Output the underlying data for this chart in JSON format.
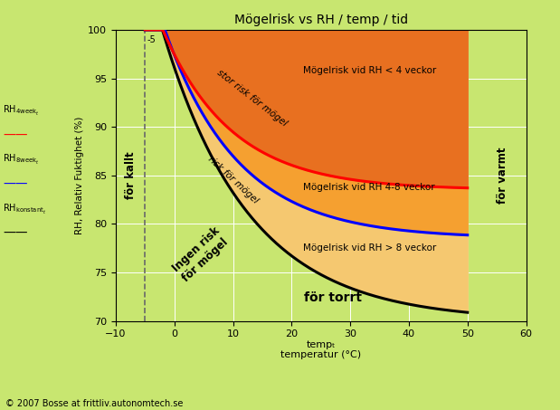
{
  "title": "Mögelrisk vs RH / temp / tid",
  "xlabel_line1": "tempₜ",
  "xlabel_line2": "temperatur (°C)",
  "ylabel": "RH, Relativ Fuktighet (%)",
  "xlim": [
    -10,
    60
  ],
  "ylim": [
    70,
    100
  ],
  "xticks": [
    -10,
    0,
    10,
    20,
    30,
    40,
    50,
    60
  ],
  "yticks": [
    70,
    75,
    80,
    85,
    90,
    95,
    100
  ],
  "background_color": "#c8e670",
  "color_high_risk": "#e87020",
  "color_mid_risk": "#f5a030",
  "color_low_risk": "#f5c870",
  "dashed_x": -5,
  "copyright": "© 2007 Bosse at frittliv.autonomtech.se",
  "label_for_kallt": "för kallt",
  "label_for_varmt": "för varmt",
  "label_for_torrt": "för torrt",
  "label_ingen_risk_line1": "Ingen risk",
  "label_ingen_risk_line2": "för mögel",
  "label_stor_risk": "stor risk för mögel",
  "label_risk": "risk för mögel",
  "label_zone1": "Mögelrisk vid RH < 4 veckor",
  "label_zone2": "Mögelrisk vid RH 4-8 veckor",
  "label_zone3": "Mögelrisk vid RH > 8 veckor",
  "dashed_label": "-5"
}
